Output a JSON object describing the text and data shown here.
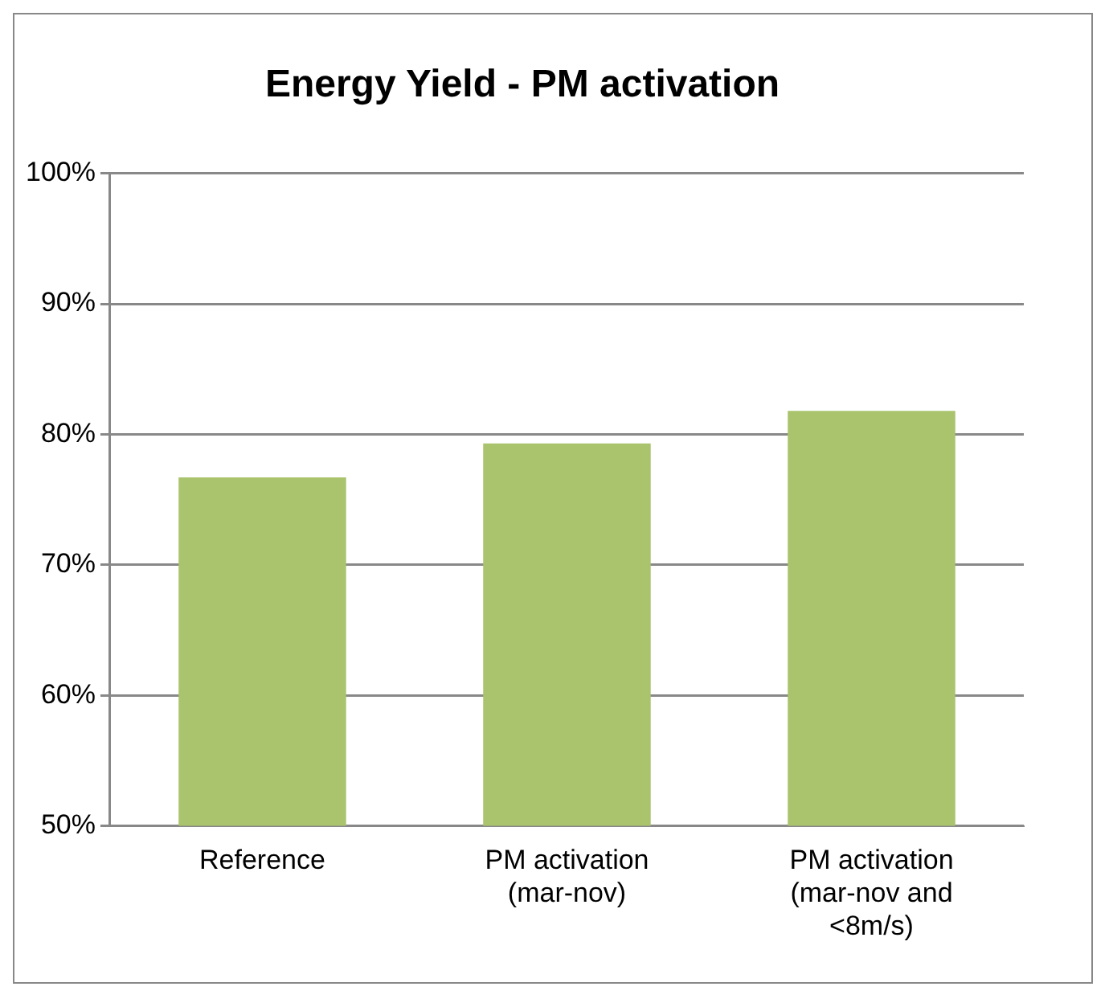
{
  "chart_data": {
    "type": "bar",
    "title": "Energy Yield - PM activation",
    "categories": [
      "Reference",
      "PM activation (mar-nov)",
      "PM activation (mar-nov and <8m/s)"
    ],
    "values": [
      76.7,
      79.3,
      81.8
    ],
    "color": "#a9c46c",
    "ylim": [
      50,
      100
    ],
    "yticks": [
      {
        "value": 50,
        "label": "50%"
      },
      {
        "value": 60,
        "label": "60%"
      },
      {
        "value": 70,
        "label": "70%"
      },
      {
        "value": 80,
        "label": "80%"
      },
      {
        "value": 90,
        "label": "90%"
      },
      {
        "value": 100,
        "label": "100%"
      }
    ],
    "grid": "y"
  }
}
